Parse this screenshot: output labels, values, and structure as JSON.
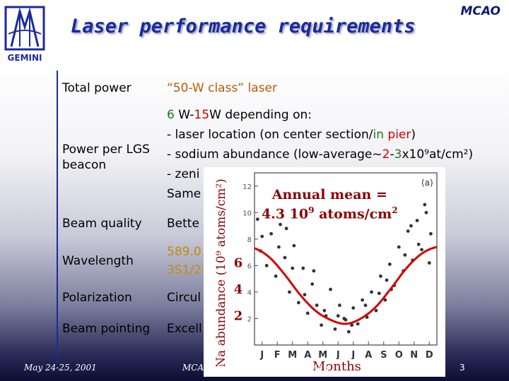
{
  "header": {
    "title": "Laser performance requirements",
    "brand": "MCAO",
    "logo_text": "GEMINI"
  },
  "table": {
    "rows": [
      {
        "label": "Total power",
        "value": "“50-W class” laser"
      },
      {
        "label": "Power per LGS beacon",
        "lines": [
          {
            "segments": [
              {
                "t": "6",
                "c": "g"
              },
              {
                "t": " W-",
                "c": ""
              },
              {
                "t": "15",
                "c": "r"
              },
              {
                "t": "W depending on:",
                "c": ""
              }
            ]
          },
          {
            "segments": [
              {
                "t": "- laser location (on center section/",
                "c": ""
              },
              {
                "t": "in",
                "c": "g"
              },
              {
                "t": " ",
                "c": ""
              },
              {
                "t": "pier",
                "c": "r"
              },
              {
                "t": ")",
                "c": ""
              }
            ]
          },
          {
            "segments": [
              {
                "t": "- sodium abundance (low-average~",
                "c": ""
              },
              {
                "t": "2",
                "c": "r"
              },
              {
                "t": "-",
                "c": ""
              },
              {
                "t": "3",
                "c": "g"
              },
              {
                "t": "x10⁹at/cm²)",
                "c": ""
              }
            ]
          },
          {
            "segments": [
              {
                "t": "- zeni",
                "c": ""
              }
            ]
          },
          {
            "segments": [
              {
                "t": "Same",
                "c": ""
              }
            ]
          }
        ]
      },
      {
        "label": "Beam quality",
        "value": "Bette"
      },
      {
        "label": "Wavelength",
        "value": "589.0",
        "value2": "3S1/2-"
      },
      {
        "label": "Polarization",
        "value": "Circul"
      },
      {
        "label": "Beam pointing",
        "value": "Excell"
      }
    ]
  },
  "footer": {
    "date": "May 24-25, 2001",
    "center": "MCAO Preliminary Design Review",
    "page": "3"
  },
  "chart_data": {
    "type": "scatter",
    "panel": "(a)",
    "annotation_line1": "Annual mean =",
    "annotation_line2": "4.3 10",
    "annotation_sup": "9",
    "annotation_tail": " atoms/cm",
    "annotation_sup2": "2",
    "ylabel": "Na abundance (10⁹ atoms/cm²)",
    "xlabel": "Months",
    "months": [
      "J",
      "F",
      "M",
      "A",
      "M",
      "J",
      "J",
      "A",
      "S",
      "O",
      "N",
      "D"
    ],
    "ytick_labels_inner": [
      "12",
      "10",
      "8",
      "6",
      "4",
      "2"
    ],
    "ytick_labels_outer": [
      "6",
      "4",
      "2"
    ],
    "ylim": [
      0,
      13
    ],
    "fit_curve": {
      "x": [
        0,
        1,
        2,
        3,
        4,
        5,
        6,
        7,
        8,
        9,
        10,
        11,
        12
      ],
      "y": [
        7.3,
        6.6,
        5.3,
        3.8,
        2.6,
        1.9,
        1.6,
        2.0,
        2.9,
        4.3,
        5.8,
        6.9,
        7.4
      ]
    },
    "series": [
      {
        "x": [
          0.2,
          0.4,
          0.6,
          0.8,
          1.1,
          1.4,
          1.7,
          2.0,
          2.3,
          2.6,
          2.9,
          3.2,
          3.5,
          3.8,
          4.1,
          4.4,
          4.7,
          5.0,
          5.3,
          5.6,
          5.9,
          6.2,
          6.5,
          6.8,
          7.1,
          7.4,
          7.7,
          8.0,
          8.3,
          8.6,
          8.9,
          9.2,
          9.5,
          9.8,
          10.1,
          10.4,
          10.7,
          11.0,
          11.3,
          11.6,
          0.5,
          1.6,
          2.5,
          3.3,
          4.6,
          5.5,
          6.4,
          7.3,
          8.2,
          9.0,
          9.9,
          10.8,
          11.5,
          0.9,
          2.1,
          3.9,
          6.0,
          8.7,
          10.3,
          11.2
        ],
        "y": [
          9.5,
          7.1,
          10.2,
          6.0,
          8.4,
          5.2,
          9.1,
          6.6,
          4.0,
          7.5,
          3.2,
          5.8,
          2.4,
          4.6,
          3.0,
          1.5,
          2.2,
          4.2,
          1.2,
          3.0,
          2.0,
          1.0,
          2.8,
          1.6,
          3.4,
          2.1,
          4.0,
          2.6,
          5.2,
          3.4,
          6.1,
          4.5,
          7.4,
          5.6,
          8.6,
          6.4,
          9.4,
          7.2,
          10.0,
          8.4,
          8.2,
          7.4,
          5.8,
          3.8,
          2.6,
          2.2,
          1.5,
          3.0,
          3.9,
          4.2,
          6.8,
          7.6,
          6.2,
          11.0,
          8.8,
          5.6,
          1.9,
          4.9,
          9.0,
          10.6
        ]
      }
    ]
  }
}
